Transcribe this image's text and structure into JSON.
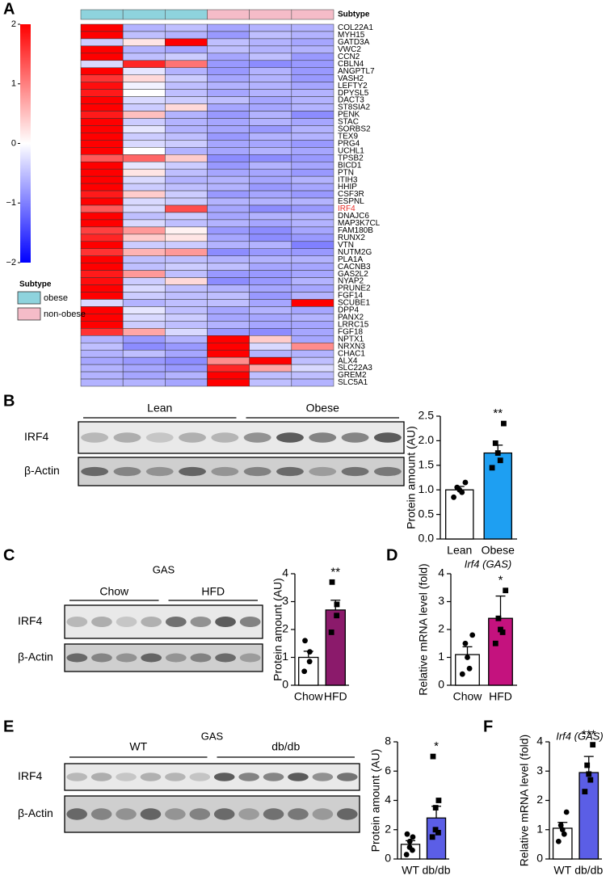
{
  "chart_data": [
    {
      "type": "heatmap",
      "panel": "A",
      "rows": [
        "COL22A1",
        "MYH15",
        "GATD3A",
        "VWC2",
        "CCN2",
        "CBLN4",
        "ANGPTL7",
        "VASH2",
        "LEFTY2",
        "DPYSL5",
        "DACT3",
        "ST8SIA2",
        "PENK",
        "STAC",
        "SORBS2",
        "TEX9",
        "PRG4",
        "UCHL1",
        "TPSB2",
        "BICD1",
        "PTN",
        "ITIH3",
        "HHIP",
        "CSF3R",
        "ESPNL",
        "IRF4",
        "DNAJC6",
        "MAP3K7CL",
        "FAM180B",
        "RUNX2",
        "VTN",
        "NUTM2G",
        "PLA1A",
        "CACNB3",
        "GAS2L2",
        "NYAP2",
        "PRUNE2",
        "FGF14",
        "SCUBE1",
        "DPP4",
        "PANX2",
        "LRRC15",
        "FGF18",
        "NPTX1",
        "NRXN3",
        "CHAC1",
        "ALX4",
        "SLC22A3",
        "GREM2",
        "SLC5A1"
      ],
      "values": [
        [
          2,
          -0.6,
          -0.5,
          -0.7,
          -0.6,
          -0.6
        ],
        [
          2,
          -0.5,
          -0.6,
          -0.8,
          -0.5,
          -0.6
        ],
        [
          -0.4,
          0.2,
          2,
          -0.5,
          -0.6,
          -0.7
        ],
        [
          2,
          -0.6,
          -0.7,
          -0.5,
          -0.6,
          -0.6
        ],
        [
          2,
          -0.5,
          -0.4,
          -0.7,
          -0.5,
          -0.8
        ],
        [
          -0.3,
          1.7,
          1.1,
          -0.8,
          -0.9,
          -0.8
        ],
        [
          2,
          -0.2,
          -0.6,
          -0.8,
          -0.6,
          -0.8
        ],
        [
          1.6,
          0.3,
          -0.4,
          -0.7,
          -0.6,
          -0.8
        ],
        [
          1.9,
          -0.1,
          -0.5,
          -0.6,
          -0.6,
          -0.7
        ],
        [
          1.8,
          0,
          -0.5,
          -0.7,
          -0.6,
          -0.6
        ],
        [
          2,
          -0.3,
          -0.4,
          -0.5,
          -0.7,
          -0.6
        ],
        [
          2,
          -0.4,
          0.3,
          -0.7,
          -0.7,
          -0.6
        ],
        [
          1.8,
          0.5,
          -0.6,
          -0.8,
          -0.6,
          -0.9
        ],
        [
          2,
          -0.4,
          -0.6,
          -0.7,
          -0.6,
          -0.7
        ],
        [
          2,
          -0.2,
          -0.6,
          -0.7,
          -0.8,
          -0.6
        ],
        [
          2,
          -0.4,
          -0.5,
          -0.8,
          -0.6,
          -0.6
        ],
        [
          2,
          -0.3,
          -0.4,
          -0.7,
          -0.7,
          -0.8
        ],
        [
          2,
          0,
          -0.6,
          -0.7,
          -0.6,
          -0.7
        ],
        [
          1.3,
          1.2,
          0.4,
          -0.9,
          -0.9,
          -0.8
        ],
        [
          2,
          -0.2,
          -0.4,
          -0.8,
          -0.6,
          -0.7
        ],
        [
          2,
          0.2,
          -0.5,
          -0.7,
          -0.7,
          -0.8
        ],
        [
          2,
          -0.3,
          -0.6,
          -0.6,
          -0.7,
          -0.6
        ],
        [
          2,
          -0.4,
          -0.5,
          -0.6,
          -0.8,
          -0.7
        ],
        [
          1.8,
          0.4,
          -0.4,
          -0.8,
          -0.7,
          -0.8
        ],
        [
          2,
          -0.3,
          -0.4,
          -0.6,
          -0.6,
          -0.6
        ],
        [
          1.3,
          -0.3,
          1.4,
          -0.7,
          -0.9,
          -0.8
        ],
        [
          2,
          -0.5,
          -0.4,
          -0.7,
          -0.6,
          -0.6
        ],
        [
          2,
          -0.3,
          -0.5,
          -0.6,
          -0.7,
          -0.6
        ],
        [
          1.5,
          0.8,
          0.1,
          -0.8,
          -0.9,
          -0.7
        ],
        [
          1.7,
          0.4,
          0.2,
          -0.7,
          -0.9,
          -0.8
        ],
        [
          2,
          -0.4,
          -0.4,
          -0.6,
          -0.6,
          -1
        ],
        [
          1.6,
          0.6,
          0.8,
          -0.9,
          -0.8,
          -0.8
        ],
        [
          2,
          -0.5,
          -0.5,
          -0.6,
          -0.6,
          -0.6
        ],
        [
          2,
          -0.5,
          -0.4,
          -0.5,
          -0.7,
          -0.7
        ],
        [
          1.8,
          0.8,
          -0.5,
          -0.8,
          -0.8,
          -0.7
        ],
        [
          1.9,
          -0.4,
          0.3,
          -0.9,
          -0.8,
          -0.6
        ],
        [
          2,
          -0.3,
          -0.5,
          -0.6,
          -0.7,
          -0.7
        ],
        [
          2,
          -0.4,
          -0.5,
          -0.5,
          -0.8,
          -0.6
        ],
        [
          -0.3,
          -0.6,
          -0.5,
          -0.5,
          -0.7,
          2
        ],
        [
          2,
          -0.2,
          -0.5,
          -0.7,
          -0.6,
          -0.7
        ],
        [
          2,
          -0.3,
          -0.4,
          -0.7,
          -0.7,
          -0.6
        ],
        [
          2,
          -0.4,
          -0.5,
          -0.6,
          -0.7,
          -0.7
        ],
        [
          1.6,
          0.7,
          -0.3,
          -0.8,
          -0.9,
          -0.7
        ],
        [
          -0.6,
          -0.8,
          -0.6,
          2,
          0.4,
          -0.7
        ],
        [
          -0.5,
          -0.9,
          -0.8,
          2,
          -0.3,
          0.9
        ],
        [
          -0.6,
          -0.5,
          -0.7,
          2,
          -0.6,
          -0.6
        ],
        [
          -0.7,
          -0.8,
          -0.9,
          0.9,
          2,
          -0.5
        ],
        [
          -0.6,
          -0.7,
          -0.8,
          1.7,
          0.7,
          -0.3
        ],
        [
          -0.6,
          -0.7,
          -0.6,
          2,
          -0.5,
          -0.5
        ],
        [
          -0.6,
          -0.6,
          -0.7,
          2,
          -0.5,
          -0.6
        ]
      ],
      "highlight": {
        "row": 25,
        "color": "#e8312b"
      },
      "colorbar": {
        "lim": [
          -2,
          2
        ],
        "ticks": [
          2,
          1,
          0,
          {
            "value": -1,
            "label": "−1"
          },
          {
            "value": -2,
            "label": "−2"
          }
        ],
        "colors": [
          "#0000ff",
          "#ffffff",
          "#ff0000"
        ]
      },
      "subtype": {
        "title": "Subtype",
        "groups": [
          {
            "name": "obese",
            "color": "#8ed3dd"
          },
          {
            "name": "non-obese",
            "color": "#f5bcc8"
          }
        ]
      }
    },
    {
      "type": "bar",
      "panel": "B",
      "ylabel": "Protein amount (AU)",
      "categories": [
        "Lean",
        "Obese"
      ],
      "values": [
        1.0,
        1.75
      ],
      "errors": [
        0.07,
        0.16
      ],
      "points": [
        [
          0.85,
          0.95,
          1.0,
          1.05,
          1.15
        ],
        [
          1.45,
          1.6,
          1.75,
          1.95,
          2.35
        ]
      ],
      "colors": [
        "#ffffff",
        "#1e9ff2"
      ],
      "annotation": "**",
      "ylim": [
        0,
        2.5
      ],
      "yticks": [
        {
          "value": 0,
          "label": "0.0"
        },
        {
          "value": 0.5,
          "label": "0.5"
        },
        {
          "value": 1,
          "label": "1.0"
        },
        {
          "value": 1.5,
          "label": "1.5"
        },
        {
          "value": 2,
          "label": "2.0"
        },
        {
          "value": 2.5,
          "label": "2.5"
        }
      ],
      "blot": {
        "row_labels": [
          "IRF4",
          "β-Actin"
        ],
        "groups": [
          "Lean",
          "Obese"
        ]
      }
    },
    {
      "type": "bar",
      "panel": "C",
      "ylabel": "Protein amount (AU)",
      "categories": [
        "Chow",
        "HFD"
      ],
      "values": [
        1.0,
        2.7
      ],
      "errors": [
        0.22,
        0.35
      ],
      "points": [
        [
          0.5,
          0.85,
          1.2,
          1.6
        ],
        [
          1.9,
          2.5,
          2.9,
          3.7
        ]
      ],
      "colors": [
        "#ffffff",
        "#8b1a6b"
      ],
      "annotation": "**",
      "ylim": [
        0,
        4
      ],
      "yticks": [
        0,
        1,
        2,
        3,
        4
      ],
      "blot": {
        "title": "GAS",
        "row_labels": [
          "IRF4",
          "β-Actin"
        ],
        "groups": [
          "Chow",
          "HFD"
        ]
      }
    },
    {
      "type": "bar",
      "panel": "D",
      "title": "Irf4 (GAS)",
      "ylabel": "Relative mRNA level (fold)",
      "categories": [
        "Chow",
        "HFD"
      ],
      "values": [
        1.1,
        2.4
      ],
      "errors": [
        0.28,
        0.8
      ],
      "points": [
        [
          0.4,
          0.6,
          1.0,
          1.5,
          1.8
        ],
        [
          1.5,
          1.9,
          2.0,
          2.4,
          3.4
        ]
      ],
      "colors": [
        "#ffffff",
        "#c4127e"
      ],
      "annotation": "*",
      "ylim": [
        0,
        4
      ],
      "yticks": [
        0,
        1,
        2,
        3,
        4
      ]
    },
    {
      "type": "bar",
      "panel": "E",
      "ylabel": "Protein amount (AU)",
      "categories": [
        "WT",
        "db/db"
      ],
      "values": [
        1.0,
        2.8
      ],
      "errors": [
        0.25,
        0.8
      ],
      "points": [
        [
          0.3,
          0.6,
          0.8,
          1.2,
          1.5,
          1.7
        ],
        [
          1.5,
          1.8,
          2.0,
          3.5,
          4.0,
          7.0
        ]
      ],
      "colors": [
        "#ffffff",
        "#5b5ee6"
      ],
      "annotation": "*",
      "ylim": [
        0,
        8
      ],
      "yticks": [
        0,
        2,
        4,
        6,
        8
      ],
      "blot": {
        "title": "GAS",
        "row_labels": [
          "IRF4",
          "β-Actin"
        ],
        "groups": [
          "WT",
          "db/db"
        ]
      }
    },
    {
      "type": "bar",
      "panel": "F",
      "title": "Irf4 (GAS)",
      "ylabel": "Relative mRNA level (fold)",
      "categories": [
        "WT",
        "db/db"
      ],
      "values": [
        1.05,
        2.95
      ],
      "errors": [
        0.2,
        0.55
      ],
      "points": [
        [
          0.6,
          0.85,
          1.0,
          1.15,
          1.6
        ],
        [
          2.3,
          2.7,
          2.9,
          3.2,
          3.9
        ]
      ],
      "colors": [
        "#ffffff",
        "#5b5ee6"
      ],
      "annotation": "***",
      "ylim": [
        0,
        4
      ],
      "yticks": [
        0,
        1,
        2,
        3,
        4
      ]
    }
  ]
}
